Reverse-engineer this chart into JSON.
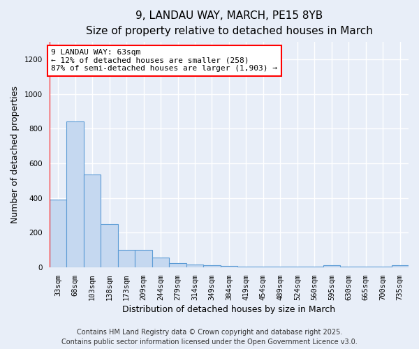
{
  "title_line1": "9, LANDAU WAY, MARCH, PE15 8YB",
  "title_line2": "Size of property relative to detached houses in March",
  "xlabel": "Distribution of detached houses by size in March",
  "ylabel": "Number of detached properties",
  "categories": [
    "33sqm",
    "68sqm",
    "103sqm",
    "138sqm",
    "173sqm",
    "209sqm",
    "244sqm",
    "279sqm",
    "314sqm",
    "349sqm",
    "384sqm",
    "419sqm",
    "454sqm",
    "489sqm",
    "524sqm",
    "560sqm",
    "595sqm",
    "630sqm",
    "665sqm",
    "700sqm",
    "735sqm"
  ],
  "values": [
    390,
    840,
    535,
    248,
    100,
    100,
    55,
    25,
    15,
    10,
    8,
    5,
    5,
    5,
    5,
    5,
    10,
    5,
    5,
    5,
    10
  ],
  "bar_color": "#c5d8f0",
  "bar_edge_color": "#5b9bd5",
  "red_line_x": 0.5,
  "annotation_text": "9 LANDAU WAY: 63sqm\n← 12% of detached houses are smaller (258)\n87% of semi-detached houses are larger (1,903) →",
  "annotation_box_color": "white",
  "annotation_box_edge_color": "red",
  "ylim": [
    0,
    1300
  ],
  "yticks": [
    0,
    200,
    400,
    600,
    800,
    1000,
    1200
  ],
  "footer_line1": "Contains HM Land Registry data © Crown copyright and database right 2025.",
  "footer_line2": "Contains public sector information licensed under the Open Government Licence v3.0.",
  "background_color": "#e8eef8",
  "grid_color": "#ffffff",
  "title_fontsize": 11,
  "subtitle_fontsize": 10,
  "axis_label_fontsize": 9,
  "tick_fontsize": 7.5,
  "annotation_fontsize": 8,
  "footer_fontsize": 7
}
